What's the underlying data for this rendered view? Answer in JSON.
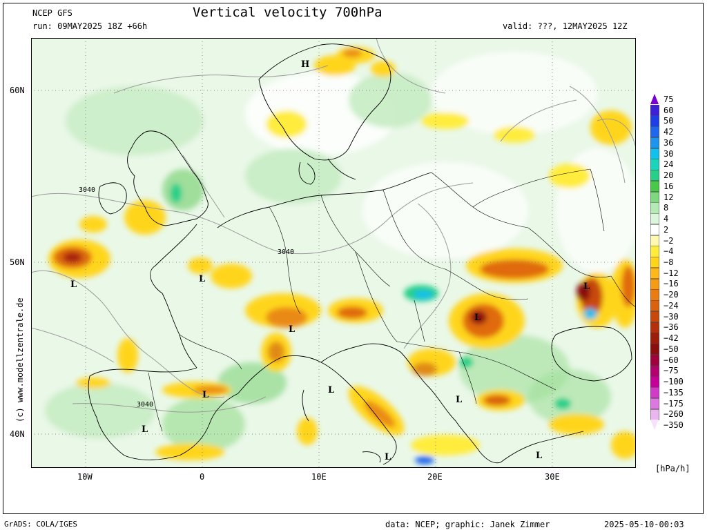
{
  "header": {
    "model": "NCEP GFS",
    "title": "Vertical velocity 700hPa",
    "run": "run: 09MAY2025 18Z +66h",
    "valid": "valid: ???, 12MAY2025 12Z"
  },
  "axes": {
    "lat_labels": [
      "60N",
      "50N",
      "40N"
    ],
    "lon_labels": [
      "10W",
      "0",
      "10E",
      "20E",
      "30E"
    ]
  },
  "map_labels": {
    "highs": [
      "H"
    ],
    "lows": [
      "L",
      "L",
      "L",
      "L",
      "L",
      "L",
      "L",
      "L",
      "L",
      "L",
      "L"
    ],
    "contours": [
      "3040",
      "3040",
      "3040"
    ]
  },
  "side_text": "(c) www.modellzentrale.de",
  "colorbar": {
    "unit": "[hPa/h]",
    "levels": [
      "75",
      "60",
      "50",
      "42",
      "36",
      "30",
      "24",
      "20",
      "16",
      "12",
      "8",
      "4",
      "2",
      "−2",
      "−4",
      "−8",
      "−12",
      "−16",
      "−20",
      "−24",
      "−30",
      "−36",
      "−42",
      "−50",
      "−60",
      "−75",
      "−100",
      "−135",
      "−175",
      "−260",
      "−350"
    ],
    "colors": [
      "#7a00d4",
      "#3c1fd6",
      "#1f3fe6",
      "#1f68ee",
      "#1d95ee",
      "#12c0ee",
      "#1ad4bc",
      "#27cf88",
      "#48c948",
      "#7ed87e",
      "#b4eab4",
      "#dcf6dc",
      "#ffffff",
      "#fff8b0",
      "#ffec3c",
      "#ffd51a",
      "#ffb81a",
      "#f79a14",
      "#ea7d12",
      "#d9620e",
      "#c8480c",
      "#b3300a",
      "#9c1e0a",
      "#8a0e0e",
      "#a0003c",
      "#b4006e",
      "#c40098",
      "#d03cc8",
      "#dc78e0",
      "#eab6f0",
      "#f6e2fa"
    ]
  },
  "footer": {
    "left": "GrADS: COLA/IGES",
    "right": "data: NCEP; graphic: Janek Zimmer",
    "timestamp": "2025-05-10-00:03"
  }
}
